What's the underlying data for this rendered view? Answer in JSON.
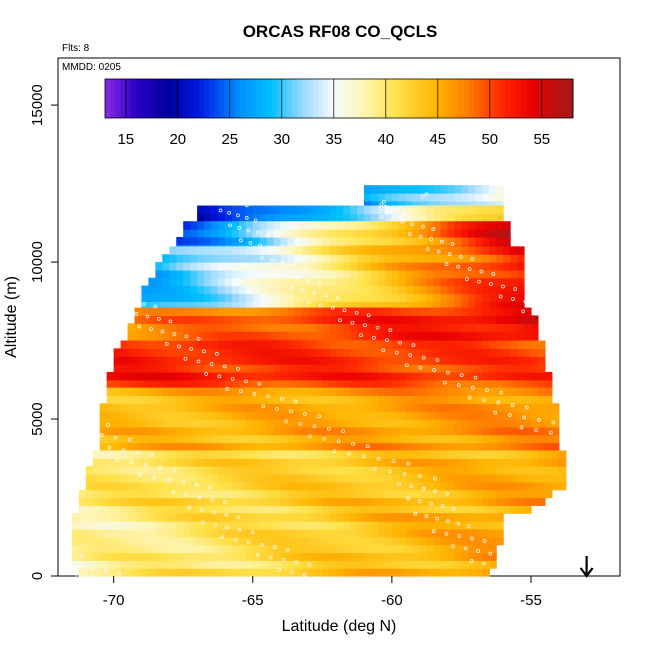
{
  "chart_data": {
    "type": "heatmap",
    "title": "ORCAS RF08 CO_QCLS",
    "xlabel": "Latitude (deg N)",
    "ylabel": "Altitude (m)",
    "xlim": [
      -72.0,
      -51.8
    ],
    "ylim": [
      0,
      16500
    ],
    "x_ticks": [
      -70,
      -65,
      -60,
      -55
    ],
    "x_tick_labels": [
      "-70",
      "-65",
      "-60",
      "-55"
    ],
    "y_ticks": [
      0,
      5000,
      10000,
      15000
    ],
    "y_tick_labels": [
      "0",
      "5000",
      "10000",
      "15000"
    ],
    "annotations": {
      "flights": "Flts: 8",
      "date": "MMDD: 0205"
    },
    "colorbar": {
      "min": 13,
      "max": 58,
      "ticks": [
        15,
        20,
        25,
        30,
        35,
        40,
        45,
        50,
        55
      ],
      "tick_labels": [
        "15",
        "20",
        "25",
        "30",
        "35",
        "40",
        "45",
        "50",
        "55"
      ],
      "stops": [
        {
          "value": 13,
          "color": "#8b2be2"
        },
        {
          "value": 16,
          "color": "#2a00c8"
        },
        {
          "value": 19,
          "color": "#00009c"
        },
        {
          "value": 22,
          "color": "#0018e0"
        },
        {
          "value": 26,
          "color": "#0090ff"
        },
        {
          "value": 29,
          "color": "#00c0ff"
        },
        {
          "value": 32,
          "color": "#9ad8ff"
        },
        {
          "value": 35,
          "color": "#f4fbff"
        },
        {
          "value": 38,
          "color": "#fff4b0"
        },
        {
          "value": 41,
          "color": "#ffe24a"
        },
        {
          "value": 45,
          "color": "#ffb300"
        },
        {
          "value": 48,
          "color": "#ff7a00"
        },
        {
          "value": 51,
          "color": "#ff2a00"
        },
        {
          "value": 54,
          "color": "#ea0000"
        },
        {
          "value": 58,
          "color": "#a01b1b"
        }
      ]
    },
    "data_extent": [
      {
        "alt": 0,
        "lat_min": -71.3,
        "lat_max": -56.5
      },
      {
        "alt": 1500,
        "lat_min": -71.6,
        "lat_max": -56.0
      },
      {
        "alt": 3000,
        "lat_min": -71.0,
        "lat_max": -53.6
      },
      {
        "alt": 4200,
        "lat_min": -70.7,
        "lat_max": -53.9
      },
      {
        "alt": 5800,
        "lat_min": -70.3,
        "lat_max": -54.2
      },
      {
        "alt": 7200,
        "lat_min": -69.9,
        "lat_max": -54.5
      },
      {
        "alt": 8300,
        "lat_min": -69.3,
        "lat_max": -54.9
      },
      {
        "alt": 9500,
        "lat_min": -68.7,
        "lat_max": -55.1
      },
      {
        "alt": 10800,
        "lat_min": -67.7,
        "lat_max": -55.4
      },
      {
        "alt": 11800,
        "lat_min": -67.0,
        "lat_max": -55.8
      },
      {
        "alt": 12300,
        "lat_min": -61.0,
        "lat_max": -56.0
      }
    ],
    "field_bands": [
      {
        "alt_min": 11700,
        "alt_max": 12300,
        "lat_min": -61.0,
        "lat_max": -56.0,
        "value_west": 26,
        "value_east": 37
      },
      {
        "alt_min": 11300,
        "alt_max": 11700,
        "lat_min": -67.0,
        "lat_max": -56.0,
        "value_west": 19,
        "value_east": 43
      },
      {
        "alt_min": 10300,
        "alt_max": 11300,
        "lat_min": -67.7,
        "lat_max": -55.8,
        "value_west": 24,
        "value_east": 55
      },
      {
        "alt_min": 8500,
        "alt_max": 10300,
        "lat_min": -69.0,
        "lat_max": -55.2,
        "value_west": 27,
        "value_east": 53
      },
      {
        "alt_min": 7300,
        "alt_max": 8500,
        "lat_min": -69.6,
        "lat_max": -54.8,
        "value_west": 47,
        "value_east": 54
      },
      {
        "alt_min": 6000,
        "alt_max": 7300,
        "lat_min": -70.2,
        "lat_max": -54.3,
        "value_west": 52,
        "value_east": 50
      },
      {
        "alt_min": 4000,
        "alt_max": 6000,
        "lat_min": -70.6,
        "lat_max": -54.0,
        "value_west": 44,
        "value_east": 47
      },
      {
        "alt_min": 2000,
        "alt_max": 4000,
        "lat_min": -71.2,
        "lat_max": -53.6,
        "value_west": 40,
        "value_east": 46
      },
      {
        "alt_min": 0,
        "alt_max": 2000,
        "lat_min": -71.6,
        "lat_max": -56.0,
        "value_west": 38,
        "value_east": 46
      }
    ],
    "arrow_marker": {
      "lat": -53.0,
      "label": "↓"
    }
  }
}
